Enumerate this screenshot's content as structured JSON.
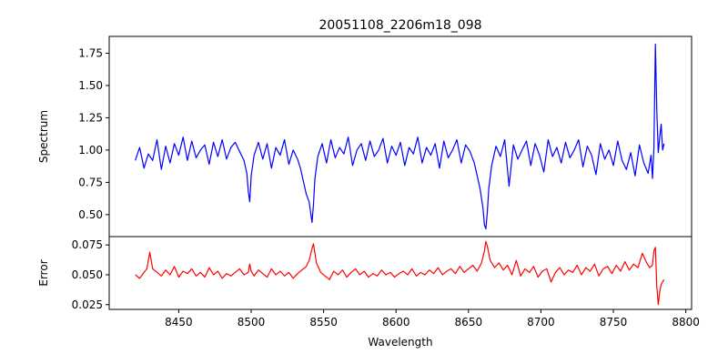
{
  "chart_data": [
    {
      "type": "line",
      "title": "20051108_2206m18_098",
      "xlabel": "",
      "ylabel": "Spectrum",
      "xlim": [
        8402,
        8804
      ],
      "ylim": [
        0.33,
        1.88
      ],
      "yticks": [
        0.5,
        0.75,
        1.0,
        1.25,
        1.5,
        1.75
      ],
      "ytick_labels": [
        "0.50",
        "0.75",
        "1.00",
        "1.25",
        "1.50",
        "1.75"
      ],
      "grid": false,
      "series": [
        {
          "color": "#0000ff",
          "x": [
            8420,
            8423,
            8426,
            8429,
            8432,
            8435,
            8438,
            8441,
            8444,
            8447,
            8450,
            8453,
            8456,
            8459,
            8462,
            8465,
            8468,
            8471,
            8474,
            8477,
            8480,
            8483,
            8486,
            8489,
            8492,
            8495,
            8497,
            8498,
            8499,
            8500,
            8502,
            8505,
            8508,
            8511,
            8514,
            8517,
            8520,
            8523,
            8526,
            8529,
            8532,
            8534,
            8536,
            8538,
            8540,
            8541,
            8542,
            8543,
            8544,
            8546,
            8549,
            8552,
            8555,
            8558,
            8561,
            8564,
            8567,
            8570,
            8573,
            8576,
            8579,
            8582,
            8585,
            8588,
            8591,
            8594,
            8597,
            8600,
            8603,
            8606,
            8609,
            8612,
            8615,
            8618,
            8621,
            8624,
            8627,
            8630,
            8633,
            8636,
            8639,
            8642,
            8645,
            8648,
            8651,
            8654,
            8656,
            8658,
            8660,
            8661,
            8662,
            8663,
            8664,
            8666,
            8669,
            8672,
            8675,
            8678,
            8681,
            8684,
            8687,
            8690,
            8693,
            8696,
            8699,
            8702,
            8705,
            8708,
            8711,
            8714,
            8717,
            8720,
            8723,
            8726,
            8729,
            8732,
            8735,
            8738,
            8741,
            8744,
            8747,
            8750,
            8753,
            8756,
            8759,
            8762,
            8765,
            8768,
            8771,
            8774,
            8776,
            8777,
            8778,
            8779,
            8780,
            8781,
            8782,
            8783,
            8784,
            8785
          ],
          "y": [
            0.92,
            1.02,
            0.86,
            0.97,
            0.92,
            1.08,
            0.85,
            1.03,
            0.9,
            1.05,
            0.96,
            1.1,
            0.92,
            1.07,
            0.94,
            1.0,
            1.04,
            0.89,
            1.06,
            0.95,
            1.08,
            0.93,
            1.02,
            1.06,
            0.99,
            0.92,
            0.82,
            0.68,
            0.6,
            0.8,
            0.96,
            1.06,
            0.93,
            1.05,
            0.86,
            1.02,
            0.96,
            1.08,
            0.89,
            1.0,
            0.93,
            0.86,
            0.76,
            0.66,
            0.6,
            0.52,
            0.44,
            0.58,
            0.78,
            0.95,
            1.05,
            0.9,
            1.08,
            0.94,
            1.02,
            0.97,
            1.1,
            0.88,
            1.0,
            1.05,
            0.92,
            1.07,
            0.95,
            1.0,
            1.09,
            0.9,
            1.03,
            0.96,
            1.06,
            0.88,
            1.02,
            0.97,
            1.1,
            0.9,
            1.02,
            0.96,
            1.05,
            0.86,
            1.07,
            0.94,
            1.0,
            1.08,
            0.9,
            1.04,
            0.99,
            0.9,
            0.8,
            0.7,
            0.55,
            0.42,
            0.39,
            0.52,
            0.7,
            0.88,
            1.03,
            0.95,
            1.08,
            0.72,
            1.04,
            0.93,
            1.0,
            1.07,
            0.88,
            1.05,
            0.96,
            0.83,
            1.08,
            0.95,
            1.02,
            0.9,
            1.06,
            0.94,
            1.0,
            1.08,
            0.87,
            1.03,
            0.96,
            0.81,
            1.05,
            0.93,
            1.0,
            0.88,
            1.07,
            0.92,
            0.85,
            0.98,
            0.8,
            1.04,
            0.9,
            0.82,
            0.96,
            0.78,
            1.02,
            1.82,
            1.3,
            0.98,
            1.1,
            1.2,
            1.0,
            1.05
          ]
        }
      ]
    },
    {
      "type": "line",
      "title": "",
      "xlabel": "Wavelength",
      "ylabel": "Error",
      "xlim": [
        8402,
        8804
      ],
      "ylim": [
        0.021,
        0.082
      ],
      "xticks": [
        8450,
        8500,
        8550,
        8600,
        8650,
        8700,
        8750,
        8800
      ],
      "xtick_labels": [
        "8450",
        "8500",
        "8550",
        "8600",
        "8650",
        "8700",
        "8750",
        "8800"
      ],
      "yticks": [
        0.025,
        0.05,
        0.075
      ],
      "ytick_labels": [
        "0.025",
        "0.050",
        "0.075"
      ],
      "grid": false,
      "series": [
        {
          "color": "#ff0000",
          "x": [
            8420,
            8423,
            8426,
            8428,
            8429,
            8430,
            8432,
            8435,
            8438,
            8441,
            8444,
            8447,
            8450,
            8453,
            8456,
            8459,
            8462,
            8465,
            8468,
            8471,
            8474,
            8477,
            8480,
            8483,
            8486,
            8489,
            8492,
            8495,
            8498,
            8499,
            8500,
            8502,
            8505,
            8508,
            8511,
            8514,
            8517,
            8520,
            8523,
            8526,
            8529,
            8532,
            8535,
            8538,
            8540,
            8542,
            8543,
            8545,
            8548,
            8551,
            8554,
            8557,
            8560,
            8563,
            8566,
            8569,
            8572,
            8575,
            8578,
            8581,
            8584,
            8587,
            8590,
            8593,
            8596,
            8599,
            8602,
            8605,
            8608,
            8611,
            8614,
            8617,
            8620,
            8623,
            8626,
            8629,
            8632,
            8635,
            8638,
            8641,
            8644,
            8647,
            8650,
            8653,
            8656,
            8659,
            8661,
            8662,
            8663,
            8665,
            8668,
            8671,
            8674,
            8677,
            8680,
            8683,
            8686,
            8689,
            8692,
            8695,
            8698,
            8701,
            8704,
            8707,
            8710,
            8713,
            8716,
            8719,
            8722,
            8725,
            8728,
            8731,
            8734,
            8737,
            8740,
            8743,
            8746,
            8749,
            8752,
            8755,
            8758,
            8761,
            8764,
            8767,
            8770,
            8773,
            8775,
            8777,
            8778,
            8779,
            8780,
            8781,
            8782,
            8783,
            8784,
            8785
          ],
          "y": [
            0.05,
            0.047,
            0.052,
            0.055,
            0.062,
            0.069,
            0.055,
            0.052,
            0.049,
            0.054,
            0.05,
            0.057,
            0.048,
            0.053,
            0.051,
            0.055,
            0.049,
            0.052,
            0.048,
            0.056,
            0.05,
            0.053,
            0.047,
            0.051,
            0.049,
            0.052,
            0.055,
            0.05,
            0.052,
            0.059,
            0.053,
            0.049,
            0.054,
            0.051,
            0.048,
            0.055,
            0.05,
            0.053,
            0.049,
            0.052,
            0.047,
            0.051,
            0.054,
            0.057,
            0.062,
            0.072,
            0.076,
            0.06,
            0.052,
            0.049,
            0.046,
            0.053,
            0.05,
            0.054,
            0.048,
            0.052,
            0.055,
            0.05,
            0.053,
            0.048,
            0.051,
            0.049,
            0.054,
            0.05,
            0.052,
            0.048,
            0.051,
            0.053,
            0.05,
            0.055,
            0.049,
            0.052,
            0.05,
            0.054,
            0.051,
            0.056,
            0.05,
            0.053,
            0.055,
            0.051,
            0.057,
            0.052,
            0.055,
            0.058,
            0.053,
            0.06,
            0.07,
            0.078,
            0.074,
            0.062,
            0.056,
            0.06,
            0.054,
            0.058,
            0.05,
            0.062,
            0.049,
            0.055,
            0.052,
            0.057,
            0.048,
            0.053,
            0.055,
            0.044,
            0.052,
            0.056,
            0.05,
            0.054,
            0.052,
            0.058,
            0.05,
            0.056,
            0.053,
            0.059,
            0.049,
            0.055,
            0.057,
            0.051,
            0.058,
            0.053,
            0.061,
            0.054,
            0.059,
            0.056,
            0.068,
            0.06,
            0.056,
            0.058,
            0.07,
            0.073,
            0.04,
            0.025,
            0.036,
            0.042,
            0.044,
            0.046
          ]
        }
      ]
    }
  ]
}
